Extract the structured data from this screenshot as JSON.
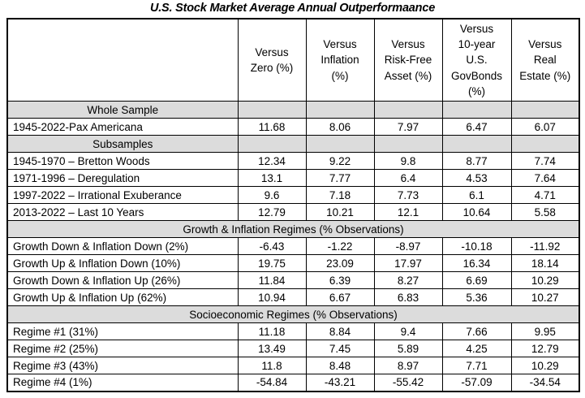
{
  "title": "U.S. Stock Market Average Annual Outperformaance",
  "colors": {
    "section_fill": "#dcdcdc",
    "border": "#000000",
    "text": "#000000",
    "background": "#ffffff"
  },
  "table": {
    "corner_label": "",
    "columns": [
      "Versus\nZero (%)",
      "Versus\nInflation\n(%)",
      "Versus\nRisk-Free\nAsset (%)",
      "Versus\n10-year\nU.S.\nGovBonds\n(%)",
      "Versus\nReal\nEstate (%)"
    ],
    "sections": [
      {
        "header": "Whole Sample",
        "header_span_full_width": false,
        "rows": [
          {
            "label": "1945-2022-Pax Americana",
            "values": [
              "11.68",
              "8.06",
              "7.97",
              "6.47",
              "6.07"
            ]
          }
        ]
      },
      {
        "header": "Subsamples",
        "header_span_full_width": false,
        "rows": [
          {
            "label": "1945-1970 – Bretton Woods",
            "values": [
              "12.34",
              "9.22",
              "9.8",
              "8.77",
              "7.74"
            ]
          },
          {
            "label": "1971-1996 – Deregulation",
            "values": [
              "13.1",
              "7.77",
              "6.4",
              "4.53",
              "7.64"
            ]
          },
          {
            "label": "1997-2022 – Irrational Exuberance",
            "values": [
              "9.6",
              "7.18",
              "7.73",
              "6.1",
              "4.71"
            ]
          },
          {
            "label": "2013-2022 – Last 10 Years",
            "values": [
              "12.79",
              "10.21",
              "12.1",
              "10.64",
              "5.58"
            ]
          }
        ]
      },
      {
        "header": "Growth & Inflation Regimes (% Observations)",
        "header_span_full_width": true,
        "rows": [
          {
            "label": "Growth Down & Inflation Down (2%)",
            "values": [
              "-6.43",
              "-1.22",
              "-8.97",
              "-10.18",
              "-11.92"
            ]
          },
          {
            "label": "Growth Up & Inflation Down (10%)",
            "values": [
              "19.75",
              "23.09",
              "17.97",
              "16.34",
              "18.14"
            ]
          },
          {
            "label": "Growth Down & Inflation Up (26%)",
            "values": [
              "11.84",
              "6.39",
              "8.27",
              "6.69",
              "10.29"
            ]
          },
          {
            "label": "Growth Up & Inflation Up (62%)",
            "values": [
              "10.94",
              "6.67",
              "6.83",
              "5.36",
              "10.27"
            ]
          }
        ]
      },
      {
        "header": "Socioeconomic Regimes (% Observations)",
        "header_span_full_width": true,
        "rows": [
          {
            "label": "Regime #1 (31%)",
            "values": [
              "11.18",
              "8.84",
              "9.4",
              "7.66",
              "9.95"
            ]
          },
          {
            "label": "Regime #2 (25%)",
            "values": [
              "13.49",
              "7.45",
              "5.89",
              "4.25",
              "12.79"
            ]
          },
          {
            "label": "Regime #3 (43%)",
            "values": [
              "11.8",
              "8.48",
              "8.97",
              "7.71",
              "10.29"
            ]
          },
          {
            "label": "Regime #4 (1%)",
            "values": [
              "-54.84",
              "-43.21",
              "-55.42",
              "-57.09",
              "-34.54"
            ]
          }
        ]
      }
    ]
  }
}
